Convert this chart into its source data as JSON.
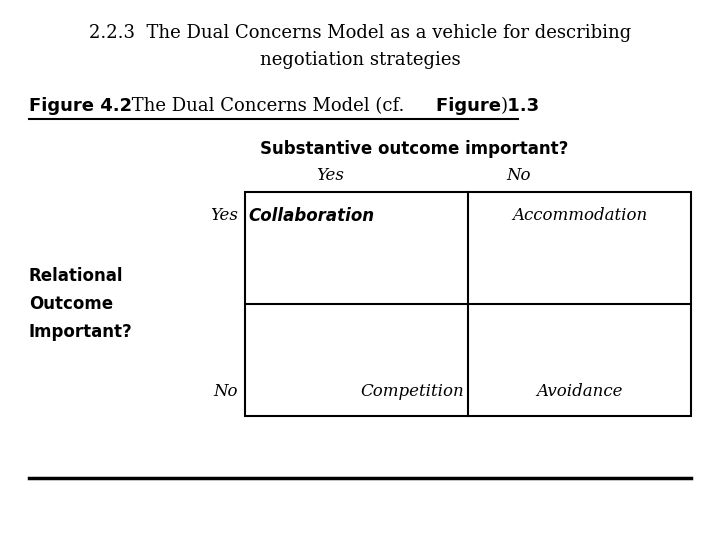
{
  "title_line1": "2.2.3  The Dual Concerns Model as a vehicle for describing",
  "title_line2": "negotiation strategies",
  "figure_label_bold": "Figure 4.2",
  "figure_label_rest": " The Dual Concerns Model (cf. ",
  "figure_label_bold2": "Figure 1.3",
  "figure_label_end": ")",
  "substantive_label": "Substantive outcome important?",
  "yes_col": "Yes",
  "no_col": "No",
  "relational_label_line1": "Relational",
  "relational_label_line2": "Outcome",
  "relational_label_line3": "Important?",
  "yes_row": "Yes",
  "no_row": "No",
  "cell_top_left_bold": "Collaboration",
  "cell_top_right": "Accommodation",
  "cell_bottom_left": "Competition",
  "cell_bottom_right": "Avoidance",
  "bg_color": "#ffffff",
  "text_color": "#000000",
  "title_fontsize": 13,
  "figure_label_fontsize": 13,
  "substantive_fontsize": 12,
  "header_fontsize": 12,
  "cell_fontsize": 12,
  "relational_fontsize": 12
}
